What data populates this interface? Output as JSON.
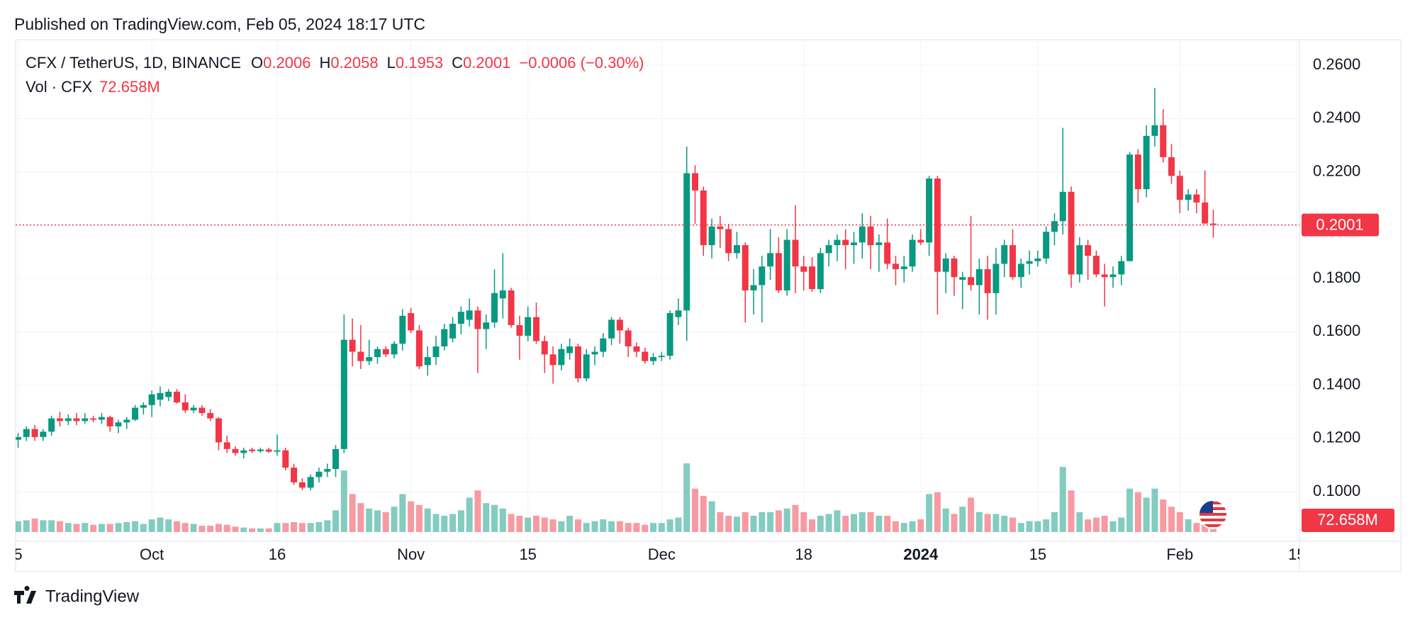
{
  "published": "Published on TradingView.com, Feb 05, 2024 18:17 UTC",
  "footer_brand": "TradingView",
  "chart_data": {
    "type": "candlestick",
    "title": "CFX / TetherUS, 1D, BINANCE",
    "ohlc_labels": [
      "O",
      "H",
      "L",
      "C"
    ],
    "change_label": "−0.0006 (−0.30%)",
    "volume_title": "Vol · CFX",
    "volume_last_label": "72.658M",
    "up_color": "#089981",
    "down_color": "#f23645",
    "grid": true,
    "current_price_line": true,
    "ylim": [
      0.0814,
      0.2696
    ],
    "yticks": [
      {
        "value": 0.1,
        "label": "0.1000"
      },
      {
        "value": 0.12,
        "label": "0.1200"
      },
      {
        "value": 0.14,
        "label": "0.1400"
      },
      {
        "value": 0.16,
        "label": "0.1600"
      },
      {
        "value": 0.18,
        "label": "0.1800"
      },
      {
        "value": 0.2,
        "label": "0.2000"
      },
      {
        "value": 0.22,
        "label": "0.2200"
      },
      {
        "value": 0.24,
        "label": "0.2400"
      },
      {
        "value": 0.26,
        "label": "0.2600"
      }
    ],
    "xticks": [
      {
        "value": "2023-09-15",
        "label": "5"
      },
      {
        "value": "2023-10-01",
        "label": "Oct"
      },
      {
        "value": "2023-10-16",
        "label": "16"
      },
      {
        "value": "2023-11-01",
        "label": "Nov"
      },
      {
        "value": "2023-11-15",
        "label": "15"
      },
      {
        "value": "2023-12-01",
        "label": "Dec"
      },
      {
        "value": "2023-12-18",
        "label": "18"
      },
      {
        "value": "2024-01-01",
        "label": "2024"
      },
      {
        "value": "2024-01-15",
        "label": "15"
      },
      {
        "value": "2024-02-01",
        "label": "Feb"
      },
      {
        "value": "2024-02-15",
        "label": "15"
      }
    ],
    "x": [
      "2023-09-15",
      "2023-09-16",
      "2023-09-17",
      "2023-09-18",
      "2023-09-19",
      "2023-09-20",
      "2023-09-21",
      "2023-09-22",
      "2023-09-23",
      "2023-09-24",
      "2023-09-25",
      "2023-09-26",
      "2023-09-27",
      "2023-09-28",
      "2023-09-29",
      "2023-09-30",
      "2023-10-01",
      "2023-10-02",
      "2023-10-03",
      "2023-10-04",
      "2023-10-05",
      "2023-10-06",
      "2023-10-07",
      "2023-10-08",
      "2023-10-09",
      "2023-10-10",
      "2023-10-11",
      "2023-10-12",
      "2023-10-13",
      "2023-10-14",
      "2023-10-15",
      "2023-10-16",
      "2023-10-17",
      "2023-10-18",
      "2023-10-19",
      "2023-10-20",
      "2023-10-21",
      "2023-10-22",
      "2023-10-23",
      "2023-10-24",
      "2023-10-25",
      "2023-10-26",
      "2023-10-27",
      "2023-10-28",
      "2023-10-29",
      "2023-10-30",
      "2023-10-31",
      "2023-11-01",
      "2023-11-02",
      "2023-11-03",
      "2023-11-04",
      "2023-11-05",
      "2023-11-06",
      "2023-11-07",
      "2023-11-08",
      "2023-11-09",
      "2023-11-10",
      "2023-11-11",
      "2023-11-12",
      "2023-11-13",
      "2023-11-14",
      "2023-11-15",
      "2023-11-16",
      "2023-11-17",
      "2023-11-18",
      "2023-11-19",
      "2023-11-20",
      "2023-11-21",
      "2023-11-22",
      "2023-11-23",
      "2023-11-24",
      "2023-11-25",
      "2023-11-26",
      "2023-11-27",
      "2023-11-28",
      "2023-11-29",
      "2023-11-30",
      "2023-12-01",
      "2023-12-02",
      "2023-12-03",
      "2023-12-04",
      "2023-12-05",
      "2023-12-06",
      "2023-12-07",
      "2023-12-08",
      "2023-12-09",
      "2023-12-10",
      "2023-12-11",
      "2023-12-12",
      "2023-12-13",
      "2023-12-14",
      "2023-12-15",
      "2023-12-16",
      "2023-12-17",
      "2023-12-18",
      "2023-12-19",
      "2023-12-20",
      "2023-12-21",
      "2023-12-22",
      "2023-12-23",
      "2023-12-24",
      "2023-12-25",
      "2023-12-26",
      "2023-12-27",
      "2023-12-28",
      "2023-12-29",
      "2023-12-30",
      "2023-12-31",
      "2024-01-01",
      "2024-01-02",
      "2024-01-03",
      "2024-01-04",
      "2024-01-05",
      "2024-01-06",
      "2024-01-07",
      "2024-01-08",
      "2024-01-09",
      "2024-01-10",
      "2024-01-11",
      "2024-01-12",
      "2024-01-13",
      "2024-01-14",
      "2024-01-15",
      "2024-01-16",
      "2024-01-17",
      "2024-01-18",
      "2024-01-19",
      "2024-01-20",
      "2024-01-21",
      "2024-01-22",
      "2024-01-23",
      "2024-01-24",
      "2024-01-25",
      "2024-01-26",
      "2024-01-27",
      "2024-01-28",
      "2024-01-29",
      "2024-01-30",
      "2024-01-31",
      "2024-02-01",
      "2024-02-02",
      "2024-02-03",
      "2024-02-04",
      "2024-02-05"
    ],
    "open": [
      0.1195,
      0.1205,
      0.1235,
      0.1205,
      0.1225,
      0.1275,
      0.1265,
      0.1275,
      0.1265,
      0.1275,
      0.127,
      0.128,
      0.1245,
      0.126,
      0.127,
      0.1315,
      0.1325,
      0.1345,
      0.1355,
      0.1375,
      0.1335,
      0.1305,
      0.1315,
      0.1295,
      0.1275,
      0.1185,
      0.116,
      0.1145,
      0.1158,
      0.1152,
      0.1158,
      0.115,
      0.1155,
      0.109,
      0.1035,
      0.1015,
      0.1055,
      0.1075,
      0.1085,
      0.116,
      0.157,
      0.1525,
      0.149,
      0.1505,
      0.1535,
      0.1515,
      0.1555,
      0.167,
      0.1605,
      0.1475,
      0.1505,
      0.1545,
      0.1575,
      0.163,
      0.1645,
      0.168,
      0.161,
      0.1635,
      0.1725,
      0.1755,
      0.1625,
      0.1585,
      0.1655,
      0.1565,
      0.1515,
      0.1475,
      0.152,
      0.1545,
      0.1425,
      0.1515,
      0.1525,
      0.1575,
      0.1645,
      0.1605,
      0.1545,
      0.1525,
      0.149,
      0.1505,
      0.151,
      0.1655,
      0.168,
      0.2195,
      0.213,
      0.1925,
      0.1995,
      0.1985,
      0.1895,
      0.1925,
      0.1755,
      0.1775,
      0.1845,
      0.1895,
      0.1755,
      0.1945,
      0.1845,
      0.1845,
      0.176,
      0.1895,
      0.1925,
      0.1945,
      0.1925,
      0.1935,
      0.1995,
      0.1925,
      0.1935,
      0.1855,
      0.1835,
      0.1845,
      0.1945,
      0.1935,
      0.2175,
      0.1825,
      0.1875,
      0.1795,
      0.1805,
      0.1775,
      0.1835,
      0.1745,
      0.1855,
      0.1925,
      0.1805,
      0.1855,
      0.1865,
      0.1875,
      0.1975,
      0.2015,
      0.2125,
      0.1815,
      0.1925,
      0.1885,
      0.1815,
      0.1805,
      0.1815,
      0.1865,
      0.2265,
      0.2135,
      0.2335,
      0.2375,
      0.2255,
      0.2185,
      0.2095,
      0.2115,
      0.2085,
      0.2006
    ],
    "high": [
      0.122,
      0.1245,
      0.125,
      0.1235,
      0.1285,
      0.13,
      0.129,
      0.1295,
      0.1295,
      0.1285,
      0.1295,
      0.1285,
      0.127,
      0.128,
      0.1325,
      0.1335,
      0.138,
      0.1395,
      0.1385,
      0.1385,
      0.1365,
      0.1325,
      0.1325,
      0.131,
      0.128,
      0.121,
      0.117,
      0.1165,
      0.1165,
      0.1165,
      0.1165,
      0.1215,
      0.1165,
      0.1105,
      0.105,
      0.1065,
      0.109,
      0.1105,
      0.1175,
      0.1665,
      0.165,
      0.1625,
      0.157,
      0.1545,
      0.1545,
      0.1565,
      0.1685,
      0.169,
      0.1625,
      0.1545,
      0.1585,
      0.163,
      0.1655,
      0.1695,
      0.1725,
      0.1695,
      0.1665,
      0.1835,
      0.1895,
      0.1765,
      0.166,
      0.1695,
      0.171,
      0.1585,
      0.1545,
      0.1555,
      0.1575,
      0.1555,
      0.1535,
      0.1545,
      0.1595,
      0.1655,
      0.1655,
      0.1615,
      0.156,
      0.154,
      0.152,
      0.1525,
      0.168,
      0.1725,
      0.2295,
      0.2225,
      0.2145,
      0.2025,
      0.2035,
      0.2005,
      0.1975,
      0.1935,
      0.1835,
      0.1885,
      0.1985,
      0.1955,
      0.1985,
      0.2075,
      0.1885,
      0.188,
      0.1915,
      0.1945,
      0.1965,
      0.1985,
      0.1975,
      0.2045,
      0.2035,
      0.1965,
      0.2025,
      0.1885,
      0.1885,
      0.1965,
      0.1985,
      0.2185,
      0.2185,
      0.1895,
      0.1885,
      0.1825,
      0.2035,
      0.1875,
      0.1885,
      0.1915,
      0.1945,
      0.1985,
      0.1875,
      0.1905,
      0.1905,
      0.1995,
      0.2045,
      0.2365,
      0.2145,
      0.1955,
      0.1945,
      0.1905,
      0.1855,
      0.1845,
      0.1885,
      0.2275,
      0.2285,
      0.2375,
      0.2515,
      0.2435,
      0.2305,
      0.2205,
      0.2135,
      0.2135,
      0.2205,
      0.2058
    ],
    "low": [
      0.1165,
      0.119,
      0.119,
      0.119,
      0.121,
      0.1245,
      0.125,
      0.125,
      0.1255,
      0.126,
      0.1255,
      0.1225,
      0.122,
      0.1235,
      0.1265,
      0.129,
      0.128,
      0.132,
      0.134,
      0.133,
      0.1295,
      0.1295,
      0.1285,
      0.1265,
      0.1155,
      0.1145,
      0.1135,
      0.1125,
      0.1145,
      0.1145,
      0.1145,
      0.1135,
      0.108,
      0.1025,
      0.1005,
      0.1005,
      0.1035,
      0.1055,
      0.1055,
      0.1145,
      0.147,
      0.146,
      0.1475,
      0.148,
      0.1505,
      0.15,
      0.153,
      0.1595,
      0.146,
      0.1435,
      0.1475,
      0.153,
      0.156,
      0.159,
      0.162,
      0.1445,
      0.1535,
      0.1615,
      0.165,
      0.1615,
      0.1495,
      0.1565,
      0.1555,
      0.1445,
      0.1405,
      0.1455,
      0.1495,
      0.141,
      0.1415,
      0.1475,
      0.1505,
      0.155,
      0.1555,
      0.1505,
      0.1505,
      0.148,
      0.1475,
      0.149,
      0.1495,
      0.1625,
      0.1565,
      0.2005,
      0.1885,
      0.1875,
      0.1915,
      0.1865,
      0.1875,
      0.1635,
      0.1665,
      0.1635,
      0.1795,
      0.1745,
      0.1735,
      0.1745,
      0.1755,
      0.175,
      0.1745,
      0.1845,
      0.1865,
      0.1835,
      0.1855,
      0.1875,
      0.1835,
      0.1825,
      0.1835,
      0.1775,
      0.1785,
      0.1825,
      0.1925,
      0.1885,
      0.1665,
      0.1745,
      0.1735,
      0.1685,
      0.1755,
      0.1665,
      0.1645,
      0.1665,
      0.1805,
      0.1795,
      0.1765,
      0.1815,
      0.1845,
      0.1855,
      0.1925,
      0.1965,
      0.1765,
      0.1785,
      0.1795,
      0.1805,
      0.1695,
      0.1765,
      0.1775,
      0.1865,
      0.2085,
      0.2105,
      0.2295,
      0.2235,
      0.2155,
      0.2045,
      0.2055,
      0.2045,
      0.2005,
      0.1953
    ],
    "close": [
      0.1205,
      0.1235,
      0.1205,
      0.1225,
      0.1275,
      0.1265,
      0.1275,
      0.1265,
      0.1275,
      0.127,
      0.128,
      0.1245,
      0.126,
      0.127,
      0.1315,
      0.1325,
      0.1365,
      0.137,
      0.1375,
      0.1335,
      0.1305,
      0.1315,
      0.1295,
      0.1275,
      0.1185,
      0.116,
      0.1145,
      0.1155,
      0.1152,
      0.1158,
      0.115,
      0.1155,
      0.109,
      0.1035,
      0.1015,
      0.1055,
      0.1075,
      0.1085,
      0.116,
      0.157,
      0.1525,
      0.149,
      0.1505,
      0.1535,
      0.1515,
      0.1555,
      0.166,
      0.1605,
      0.147,
      0.1505,
      0.1545,
      0.161,
      0.163,
      0.1675,
      0.168,
      0.161,
      0.1635,
      0.1745,
      0.1755,
      0.1625,
      0.1585,
      0.1655,
      0.1565,
      0.1515,
      0.1475,
      0.1535,
      0.1545,
      0.1425,
      0.1515,
      0.1525,
      0.1575,
      0.1645,
      0.1605,
      0.1545,
      0.1525,
      0.149,
      0.1505,
      0.151,
      0.167,
      0.168,
      0.2195,
      0.213,
      0.1925,
      0.1995,
      0.1985,
      0.1895,
      0.1925,
      0.1755,
      0.1775,
      0.1845,
      0.1895,
      0.1755,
      0.1945,
      0.1845,
      0.1825,
      0.176,
      0.1895,
      0.1925,
      0.1945,
      0.1925,
      0.1935,
      0.1995,
      0.1925,
      0.1935,
      0.1855,
      0.1835,
      0.1845,
      0.1945,
      0.1935,
      0.2175,
      0.1825,
      0.1875,
      0.1805,
      0.1805,
      0.1775,
      0.1835,
      0.1745,
      0.1855,
      0.1925,
      0.1805,
      0.1855,
      0.1865,
      0.1875,
      0.1975,
      0.2015,
      0.2125,
      0.1815,
      0.1925,
      0.1885,
      0.1815,
      0.1805,
      0.1815,
      0.1865,
      0.2265,
      0.2135,
      0.2335,
      0.2375,
      0.2255,
      0.2185,
      0.2095,
      0.2115,
      0.2085,
      0.2006,
      0.2001
    ],
    "volume": [
      144,
      156,
      180,
      156,
      156,
      144,
      120,
      108,
      120,
      96,
      108,
      108,
      120,
      132,
      144,
      108,
      168,
      192,
      168,
      144,
      120,
      108,
      84,
      84,
      108,
      96,
      72,
      60,
      48,
      48,
      48,
      120,
      120,
      132,
      120,
      120,
      132,
      156,
      288,
      816,
      504,
      384,
      312,
      288,
      264,
      336,
      504,
      408,
      360,
      312,
      240,
      216,
      240,
      288,
      456,
      552,
      384,
      360,
      312,
      240,
      216,
      192,
      216,
      192,
      168,
      144,
      216,
      168,
      120,
      144,
      168,
      144,
      144,
      120,
      120,
      96,
      120,
      120,
      168,
      192,
      912,
      576,
      480,
      408,
      264,
      216,
      204,
      264,
      216,
      264,
      264,
      288,
      312,
      360,
      264,
      168,
      216,
      240,
      288,
      216,
      240,
      264,
      264,
      216,
      216,
      144,
      120,
      144,
      168,
      504,
      528,
      312,
      240,
      336,
      456,
      264,
      240,
      240,
      216,
      192,
      120,
      144,
      144,
      168,
      264,
      864,
      552,
      264,
      168,
      192,
      216,
      144,
      192,
      576,
      528,
      456,
      576,
      432,
      336,
      264,
      168,
      120,
      96,
      72.658
    ]
  }
}
